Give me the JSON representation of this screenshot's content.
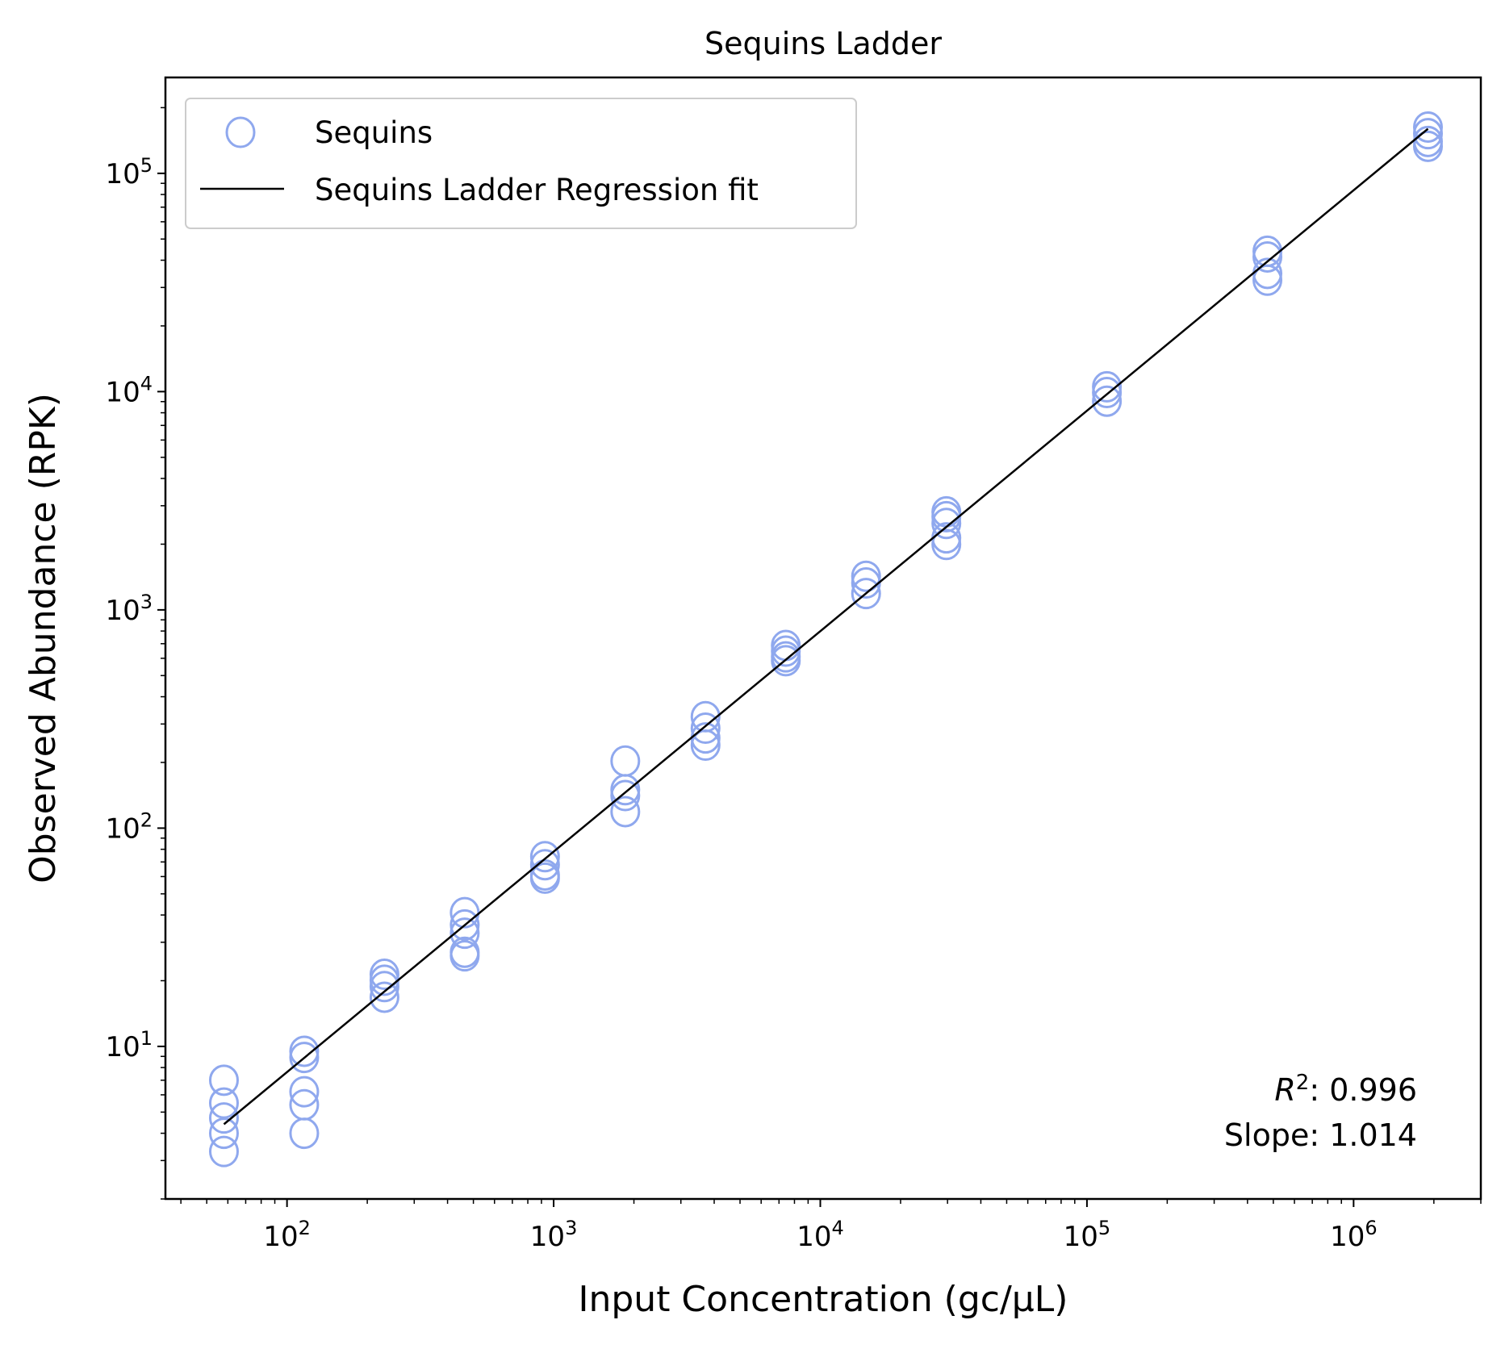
{
  "chart_data": {
    "type": "scatter",
    "title": "Sequins Ladder",
    "xlabel": "Input Concentration (gc/μL)",
    "ylabel": "Observed Abundance (RPK)",
    "xscale": "log",
    "yscale": "log",
    "xlim": [
      35,
      3000000
    ],
    "ylim": [
      2.0,
      275000
    ],
    "x_ticks": [
      {
        "value": 100,
        "base": "10",
        "exp": "2"
      },
      {
        "value": 1000,
        "base": "10",
        "exp": "3"
      },
      {
        "value": 10000,
        "base": "10",
        "exp": "4"
      },
      {
        "value": 100000,
        "base": "10",
        "exp": "5"
      },
      {
        "value": 1000000,
        "base": "10",
        "exp": "6"
      }
    ],
    "y_ticks": [
      {
        "value": 10,
        "base": "10",
        "exp": "1"
      },
      {
        "value": 100,
        "base": "10",
        "exp": "2"
      },
      {
        "value": 1000,
        "base": "10",
        "exp": "3"
      },
      {
        "value": 10000,
        "base": "10",
        "exp": "4"
      },
      {
        "value": 100000,
        "base": "10",
        "exp": "5"
      }
    ],
    "grid": false,
    "legend_position": "top-left",
    "marker_color": "#8fa8ee",
    "line_color": "#000000",
    "series": [
      {
        "name": "Sequins",
        "kind": "scatter",
        "points": [
          [
            58,
            7.0
          ],
          [
            58,
            5.5
          ],
          [
            58,
            4.7
          ],
          [
            58,
            4.0
          ],
          [
            58,
            3.3
          ],
          [
            116,
            9.5
          ],
          [
            116,
            8.9
          ],
          [
            116,
            6.2
          ],
          [
            116,
            5.4
          ],
          [
            116,
            4.0
          ],
          [
            232,
            21.4
          ],
          [
            232,
            20.1
          ],
          [
            232,
            18.8
          ],
          [
            232,
            16.8
          ],
          [
            464,
            41
          ],
          [
            464,
            36
          ],
          [
            464,
            33
          ],
          [
            464,
            27
          ],
          [
            464,
            26
          ],
          [
            928,
            74
          ],
          [
            928,
            68
          ],
          [
            928,
            61
          ],
          [
            928,
            59
          ],
          [
            1856,
            203
          ],
          [
            1856,
            150
          ],
          [
            1856,
            141
          ],
          [
            1856,
            119
          ],
          [
            3712,
            324
          ],
          [
            3712,
            287
          ],
          [
            3712,
            259
          ],
          [
            3712,
            240
          ],
          [
            7424,
            687
          ],
          [
            7424,
            647
          ],
          [
            7424,
            609
          ],
          [
            7424,
            585
          ],
          [
            14848,
            1426
          ],
          [
            14848,
            1328
          ],
          [
            14848,
            1188
          ],
          [
            29696,
            2814
          ],
          [
            29696,
            2673
          ],
          [
            29696,
            2489
          ],
          [
            29696,
            2138
          ],
          [
            29696,
            1995
          ],
          [
            118784,
            10520
          ],
          [
            118784,
            9900
          ],
          [
            118784,
            9040
          ],
          [
            475136,
            43950
          ],
          [
            475136,
            41400
          ],
          [
            475136,
            34800
          ],
          [
            475136,
            32400
          ],
          [
            1900544,
            163000
          ],
          [
            1900544,
            152000
          ],
          [
            1900544,
            140000
          ],
          [
            1900544,
            133000
          ]
        ]
      },
      {
        "name": "Sequins Ladder Regression fit",
        "kind": "line",
        "points": [
          [
            58,
            4.4
          ],
          [
            1900544,
            160000
          ]
        ]
      }
    ],
    "annotations": {
      "r2_label": "R",
      "r2_sup": "2",
      "r2_value": ": 0.996",
      "slope": "Slope: 1.014"
    }
  }
}
